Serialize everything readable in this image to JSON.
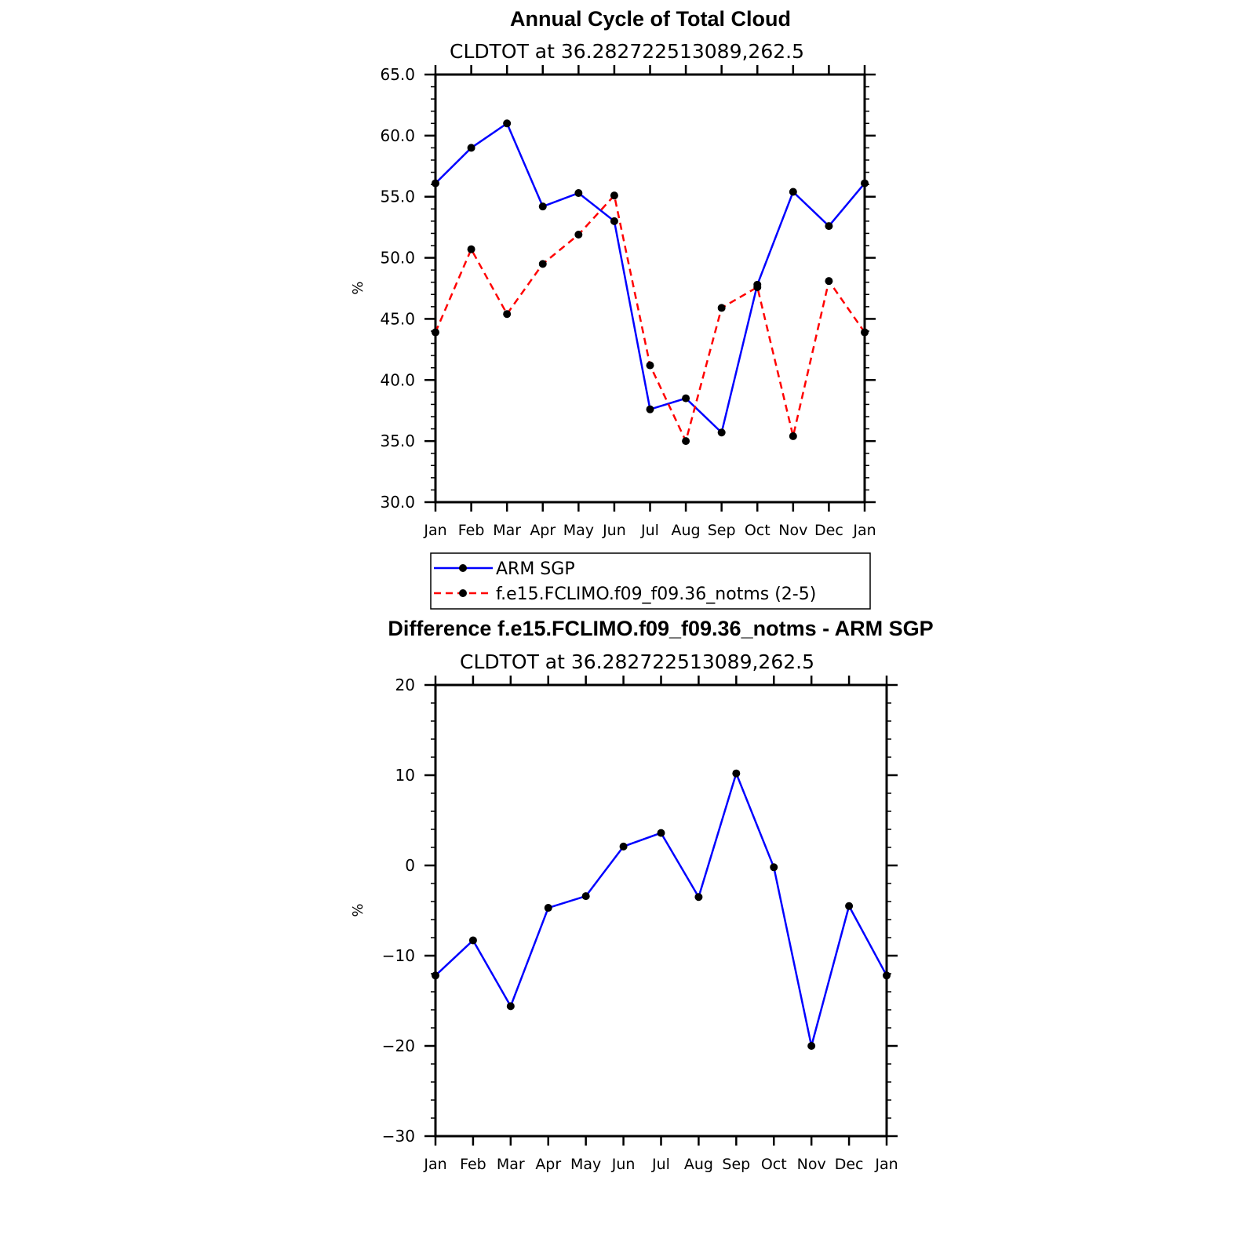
{
  "chart_data": [
    {
      "type": "line",
      "title": "Annual Cycle of Total Cloud",
      "subtitle": "CLDTOT at 36.282722513089,262.5",
      "ylabel": "%",
      "ylim": [
        30,
        65
      ],
      "yticks": [
        "30.0",
        "35.0",
        "40.0",
        "45.0",
        "50.0",
        "55.0",
        "60.0",
        "65.0"
      ],
      "categories": [
        "Jan",
        "Feb",
        "Mar",
        "Apr",
        "May",
        "Jun",
        "Jul",
        "Aug",
        "Sep",
        "Oct",
        "Nov",
        "Dec",
        "Jan"
      ],
      "series": [
        {
          "name": "ARM SGP",
          "color": "#0000ff",
          "dash": "solid",
          "values": [
            56.1,
            59.0,
            61.0,
            54.2,
            55.3,
            53.0,
            37.6,
            38.5,
            35.7,
            47.8,
            55.4,
            52.6,
            56.1
          ]
        },
        {
          "name": "f.e15.FCLIMO.f09_f09.36_notms (2-5)",
          "color": "#ff0000",
          "dash": "dashed",
          "values": [
            43.9,
            50.7,
            45.4,
            49.5,
            51.9,
            55.1,
            41.2,
            35.0,
            45.9,
            47.6,
            35.4,
            48.1,
            43.9
          ]
        }
      ],
      "legend": "bottom"
    },
    {
      "type": "line",
      "title": "Difference f.e15.FCLIMO.f09_f09.36_notms - ARM SGP",
      "subtitle": "CLDTOT at 36.282722513089,262.5",
      "ylabel": "%",
      "ylim": [
        -30,
        20
      ],
      "yticks": [
        "−30",
        "−20",
        "−10",
        "0",
        "10",
        "20"
      ],
      "categories": [
        "Jan",
        "Feb",
        "Mar",
        "Apr",
        "May",
        "Jun",
        "Jul",
        "Aug",
        "Sep",
        "Oct",
        "Nov",
        "Dec",
        "Jan"
      ],
      "series": [
        {
          "color": "#0000ff",
          "dash": "solid",
          "values": [
            -12.2,
            -8.3,
            -15.6,
            -4.7,
            -3.4,
            2.1,
            3.6,
            -3.5,
            10.2,
            -0.2,
            -20.0,
            -4.5,
            -12.2
          ]
        }
      ]
    }
  ]
}
